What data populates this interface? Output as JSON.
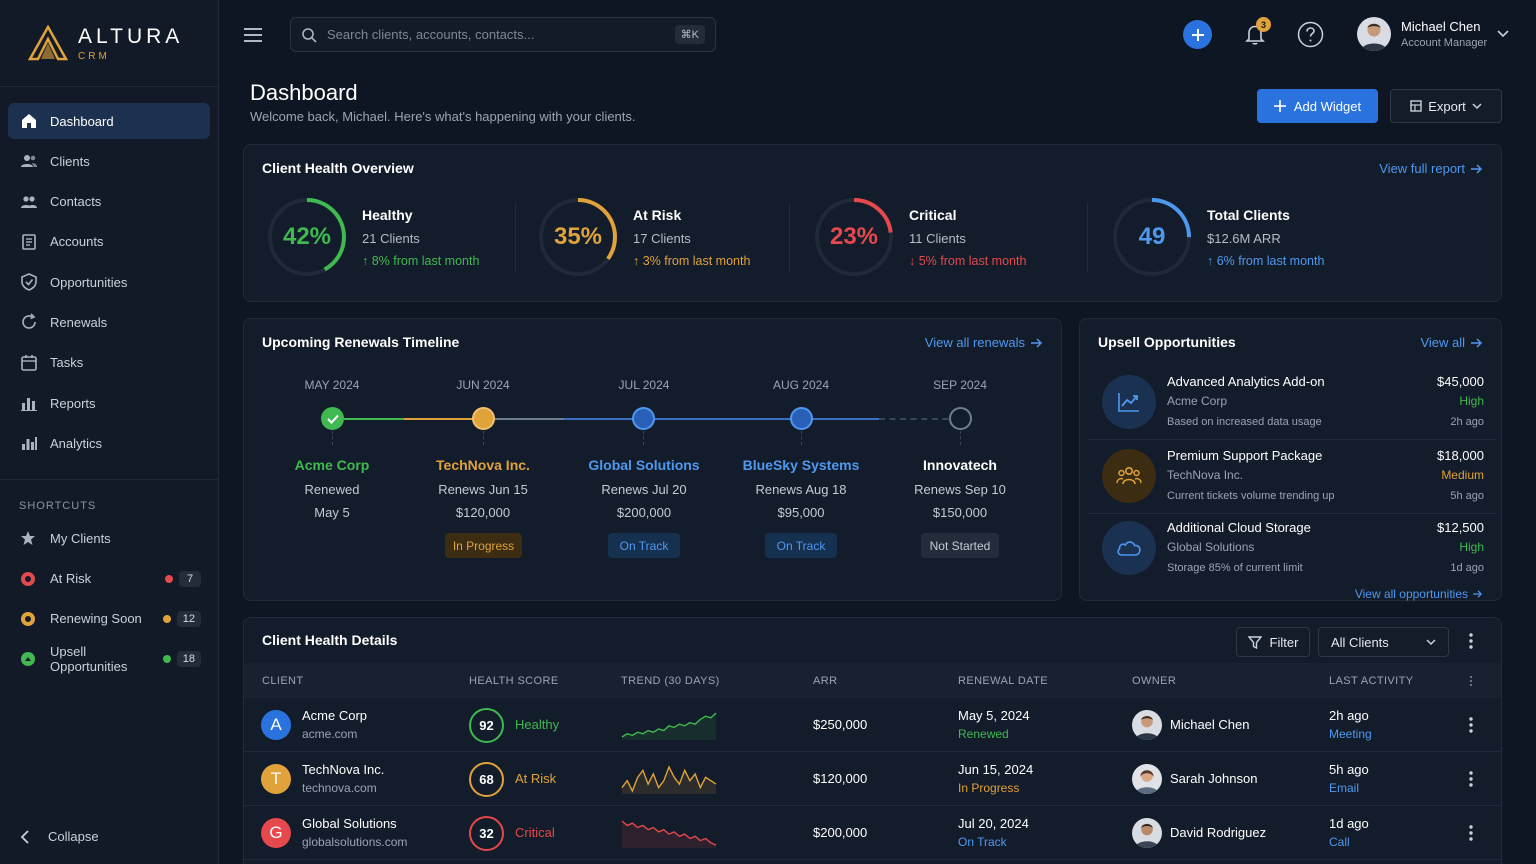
{
  "brand": {
    "name": "ALTURA",
    "sub": "CRM",
    "accent": "#e0a23a"
  },
  "sidebar": {
    "items": [
      {
        "label": "Dashboard",
        "icon": "home-icon",
        "active": true
      },
      {
        "label": "Clients",
        "icon": "users-icon"
      },
      {
        "label": "Contacts",
        "icon": "contacts-icon"
      },
      {
        "label": "Accounts",
        "icon": "accounts-icon"
      },
      {
        "label": "Opportunities",
        "icon": "shield-icon"
      },
      {
        "label": "Renewals",
        "icon": "refresh-icon"
      },
      {
        "label": "Tasks",
        "icon": "calendar-icon"
      },
      {
        "label": "Reports",
        "icon": "bar-chart-icon"
      },
      {
        "label": "Analytics",
        "icon": "analytics-icon"
      }
    ],
    "shortcuts_title": "SHORTCUTS",
    "shortcuts": [
      {
        "label": "My Clients",
        "count": ""
      },
      {
        "label": "At Risk",
        "count": "7",
        "color": "#e5484d"
      },
      {
        "label": "Renewing Soon",
        "count": "12",
        "color": "#e0a23a"
      },
      {
        "label": "Upsell Opportunities",
        "count": "18",
        "color": "#3fb950"
      }
    ],
    "collapse": "Collapse"
  },
  "topbar": {
    "search_placeholder": "Search clients, accounts, contacts...",
    "search_shortcut": "⌘K",
    "notifications": "3",
    "user": {
      "name": "Michael Chen",
      "role": "Account Manager"
    }
  },
  "page": {
    "title": "Dashboard",
    "subtitle": "Welcome back, Michael. Here's what's happening with your clients.",
    "add_widget": "Add Widget",
    "export": "Export"
  },
  "health": {
    "title": "Client Health Overview",
    "link": "View full report",
    "metrics": [
      {
        "value": "42%",
        "fraction": 0.42,
        "name": "Healthy",
        "count": "21 Clients",
        "trend": "8% from last month",
        "direction": "up",
        "color": "#3fb950"
      },
      {
        "value": "35%",
        "fraction": 0.35,
        "name": "At Risk",
        "count": "17 Clients",
        "trend": "3% from last month",
        "direction": "up",
        "color": "#e0a23a"
      },
      {
        "value": "23%",
        "fraction": 0.23,
        "name": "Critical",
        "count": "11 Clients",
        "trend": "5% from last month",
        "direction": "down",
        "color": "#e5484d"
      },
      {
        "value": "49",
        "fraction": 0.25,
        "name": "Total Clients",
        "count": "$12.6M ARR",
        "trend": "6% from last month",
        "direction": "up",
        "color": "#4f98f0"
      }
    ]
  },
  "renewals": {
    "title": "Upcoming Renewals Timeline",
    "link": "View all renewals",
    "items": [
      {
        "month": "MAY 2024",
        "client": "Acme Corp",
        "status_line": "Renewed",
        "date": "May 5",
        "amount": "",
        "badge": "",
        "color": "#3fb950"
      },
      {
        "month": "JUN 2024",
        "client": "TechNova Inc.",
        "status_line": "Renews Jun 15",
        "date": "",
        "amount": "$120,000",
        "badge": "In Progress",
        "color": "#e0a23a"
      },
      {
        "month": "JUL 2024",
        "client": "Global Solutions",
        "status_line": "Renews Jul 20",
        "date": "",
        "amount": "$200,000",
        "badge": "On Track",
        "color": "#4f98f0"
      },
      {
        "month": "AUG 2024",
        "client": "BlueSky Systems",
        "status_line": "Renews Aug 18",
        "date": "",
        "amount": "$95,000",
        "badge": "On Track",
        "color": "#4f98f0"
      },
      {
        "month": "SEP 2024",
        "client": "Innovatech",
        "status_line": "Renews Sep 10",
        "date": "",
        "amount": "$150,000",
        "badge": "Not Started",
        "color": "#ffffff"
      }
    ]
  },
  "upsell": {
    "title": "Upsell Opportunities",
    "link": "View all",
    "footer": "View all opportunities",
    "items": [
      {
        "title": "Advanced Analytics Add-on",
        "company": "Acme Corp",
        "note": "Based on increased data usage",
        "amount": "$45,000",
        "priority": "High",
        "time": "2h ago",
        "icon": "trend-chart-icon",
        "color": "#3fb950"
      },
      {
        "title": "Premium Support Package",
        "company": "TechNova Inc.",
        "note": "Current tickets volume trending up",
        "amount": "$18,000",
        "priority": "Medium",
        "time": "5h ago",
        "icon": "team-icon",
        "color": "#e0a23a"
      },
      {
        "title": "Additional Cloud Storage",
        "company": "Global Solutions",
        "note": "Storage 85% of current limit",
        "amount": "$12,500",
        "priority": "High",
        "time": "1d ago",
        "icon": "cloud-icon",
        "color": "#3fb950"
      }
    ]
  },
  "details": {
    "title": "Client Health Details",
    "filter": "Filter",
    "select": "All Clients",
    "columns": [
      "CLIENT",
      "HEALTH SCORE",
      "TREND (30 DAYS)",
      "ARR",
      "RENEWAL DATE",
      "OWNER",
      "LAST ACTIVITY"
    ],
    "rows": [
      {
        "initial": "A",
        "name": "Acme Corp",
        "domain": "acme.com",
        "score": "92",
        "label": "Healthy",
        "arr": "$250,000",
        "date": "May 5, 2024",
        "status": "Renewed",
        "owner": "Michael Chen",
        "time": "2h ago",
        "activity": "Meeting",
        "color": "#3fb950",
        "avatar_color": "#2a73de",
        "trend": [
          5,
          7,
          6,
          8,
          7,
          9,
          8,
          10,
          9,
          12,
          11,
          13,
          12,
          14,
          13,
          16,
          18,
          17,
          20
        ]
      },
      {
        "initial": "T",
        "name": "TechNova Inc.",
        "domain": "technova.com",
        "score": "68",
        "label": "At Risk",
        "arr": "$120,000",
        "date": "Jun 15, 2024",
        "status": "In Progress",
        "owner": "Sarah Johnson",
        "time": "5h ago",
        "activity": "Email",
        "color": "#e0a23a",
        "avatar_color": "#e0a23a",
        "trend": [
          10,
          12,
          9,
          13,
          15,
          11,
          14,
          10,
          12,
          16,
          13,
          11,
          15,
          12,
          14,
          10,
          13,
          12,
          11
        ]
      },
      {
        "initial": "G",
        "name": "Global Solutions",
        "domain": "globalsolutions.com",
        "score": "32",
        "label": "Critical",
        "arr": "$200,000",
        "date": "Jul 20, 2024",
        "status": "On Track",
        "owner": "David Rodriguez",
        "time": "1d ago",
        "activity": "Call",
        "color": "#e5484d",
        "avatar_color": "#e5484d",
        "trend": [
          18,
          16,
          17,
          15,
          16,
          14,
          15,
          13,
          14,
          12,
          13,
          11,
          12,
          10,
          11,
          9,
          10,
          8,
          7
        ]
      }
    ]
  }
}
